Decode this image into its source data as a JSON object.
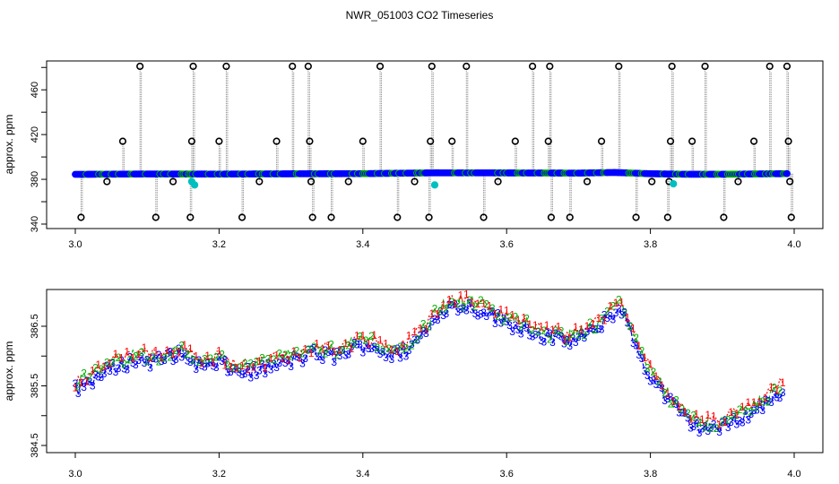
{
  "title": "NWR_051003  CO2 Timeseries",
  "colors": {
    "flag1": "#ff0000",
    "flag2": "#00b000",
    "flag3": "#0000ff",
    "outlier_ring": "#000000",
    "fill_main": "#0000ff",
    "fill_alt": "#00bfbf",
    "vertical_lines": "#888888",
    "axes": "#000000"
  },
  "chart_data": [
    {
      "type": "scatter",
      "title": "",
      "xlabel": "",
      "ylabel": "approx. ppm",
      "xlim": [
        3.0,
        4.0
      ],
      "ylim": [
        340,
        480
      ],
      "xticks": [
        "3.0",
        "3.2",
        "3.4",
        "3.6",
        "3.8",
        "4.0"
      ],
      "yticks": [
        "340",
        "380",
        "420",
        "460"
      ],
      "baseline_series": {
        "name": "",
        "x_start": 3.0,
        "x_end": 3.99,
        "step": 0.0025,
        "y_segments": [
          {
            "x": 3.0,
            "y": 384.8
          },
          {
            "x": 3.1,
            "y": 385.2
          },
          {
            "x": 3.2,
            "y": 385.1
          },
          {
            "x": 3.3,
            "y": 385.4
          },
          {
            "x": 3.4,
            "y": 385.6
          },
          {
            "x": 3.5,
            "y": 386.5
          },
          {
            "x": 3.6,
            "y": 386.4
          },
          {
            "x": 3.7,
            "y": 386.2
          },
          {
            "x": 3.75,
            "y": 386.9
          },
          {
            "x": 3.8,
            "y": 385.5
          },
          {
            "x": 3.85,
            "y": 384.9
          },
          {
            "x": 3.9,
            "y": 384.9
          },
          {
            "x": 3.99,
            "y": 385.6
          }
        ]
      },
      "outliers": [
        {
          "x": 3.008,
          "y": 346
        },
        {
          "x": 3.044,
          "y": 378
        },
        {
          "x": 3.066,
          "y": 414
        },
        {
          "x": 3.09,
          "y": 481
        },
        {
          "x": 3.112,
          "y": 346
        },
        {
          "x": 3.136,
          "y": 378
        },
        {
          "x": 3.16,
          "y": 346
        },
        {
          "x": 3.162,
          "y": 414
        },
        {
          "x": 3.164,
          "y": 481
        },
        {
          "x": 3.2,
          "y": 414
        },
        {
          "x": 3.21,
          "y": 481
        },
        {
          "x": 3.232,
          "y": 346
        },
        {
          "x": 3.256,
          "y": 378
        },
        {
          "x": 3.28,
          "y": 414
        },
        {
          "x": 3.302,
          "y": 481
        },
        {
          "x": 3.324,
          "y": 481
        },
        {
          "x": 3.326,
          "y": 414
        },
        {
          "x": 3.328,
          "y": 378
        },
        {
          "x": 3.33,
          "y": 346
        },
        {
          "x": 3.356,
          "y": 346
        },
        {
          "x": 3.38,
          "y": 378
        },
        {
          "x": 3.4,
          "y": 414
        },
        {
          "x": 3.424,
          "y": 481
        },
        {
          "x": 3.448,
          "y": 346
        },
        {
          "x": 3.472,
          "y": 378
        },
        {
          "x": 3.492,
          "y": 346
        },
        {
          "x": 3.494,
          "y": 414
        },
        {
          "x": 3.496,
          "y": 481
        },
        {
          "x": 3.524,
          "y": 414
        },
        {
          "x": 3.544,
          "y": 481
        },
        {
          "x": 3.568,
          "y": 346
        },
        {
          "x": 3.588,
          "y": 378
        },
        {
          "x": 3.612,
          "y": 414
        },
        {
          "x": 3.636,
          "y": 481
        },
        {
          "x": 3.658,
          "y": 414
        },
        {
          "x": 3.66,
          "y": 481
        },
        {
          "x": 3.662,
          "y": 346
        },
        {
          "x": 3.688,
          "y": 346
        },
        {
          "x": 3.712,
          "y": 378
        },
        {
          "x": 3.732,
          "y": 414
        },
        {
          "x": 3.756,
          "y": 481
        },
        {
          "x": 3.78,
          "y": 346
        },
        {
          "x": 3.802,
          "y": 378
        },
        {
          "x": 3.824,
          "y": 346
        },
        {
          "x": 3.826,
          "y": 378
        },
        {
          "x": 3.828,
          "y": 414
        },
        {
          "x": 3.83,
          "y": 481
        },
        {
          "x": 3.876,
          "y": 481
        },
        {
          "x": 3.858,
          "y": 414
        },
        {
          "x": 3.902,
          "y": 346
        },
        {
          "x": 3.922,
          "y": 378
        },
        {
          "x": 3.944,
          "y": 414
        },
        {
          "x": 3.966,
          "y": 481
        },
        {
          "x": 3.99,
          "y": 481
        },
        {
          "x": 3.992,
          "y": 414
        },
        {
          "x": 3.994,
          "y": 378
        },
        {
          "x": 3.996,
          "y": 346
        }
      ],
      "cyan_points": [
        {
          "x": 3.162,
          "y": 378
        },
        {
          "x": 3.166,
          "y": 375
        },
        {
          "x": 3.5,
          "y": 375
        },
        {
          "x": 3.832,
          "y": 376
        }
      ]
    },
    {
      "type": "line",
      "title": "",
      "xlabel": "",
      "ylabel": "approx. ppm",
      "xlim": [
        3.0,
        4.0
      ],
      "ylim": [
        384.5,
        387.1
      ],
      "xticks": [
        "3.0",
        "3.2",
        "3.4",
        "3.6",
        "3.8",
        "4.0"
      ],
      "yticks": [
        "384.5",
        "385.5",
        "386.5"
      ],
      "marker_labels": [
        "1",
        "2",
        "3"
      ],
      "series_profile": [
        {
          "x": 3.0,
          "y": 385.5
        },
        {
          "x": 3.03,
          "y": 385.7
        },
        {
          "x": 3.06,
          "y": 385.9
        },
        {
          "x": 3.09,
          "y": 386.0
        },
        {
          "x": 3.11,
          "y": 385.95
        },
        {
          "x": 3.14,
          "y": 386.1
        },
        {
          "x": 3.16,
          "y": 386.0
        },
        {
          "x": 3.18,
          "y": 385.85
        },
        {
          "x": 3.2,
          "y": 385.95
        },
        {
          "x": 3.22,
          "y": 385.8
        },
        {
          "x": 3.25,
          "y": 385.8
        },
        {
          "x": 3.28,
          "y": 385.9
        },
        {
          "x": 3.31,
          "y": 386.0
        },
        {
          "x": 3.33,
          "y": 386.1
        },
        {
          "x": 3.36,
          "y": 386.05
        },
        {
          "x": 3.39,
          "y": 386.2
        },
        {
          "x": 3.41,
          "y": 386.25
        },
        {
          "x": 3.44,
          "y": 386.05
        },
        {
          "x": 3.46,
          "y": 386.15
        },
        {
          "x": 3.49,
          "y": 386.5
        },
        {
          "x": 3.51,
          "y": 386.85
        },
        {
          "x": 3.54,
          "y": 386.9
        },
        {
          "x": 3.57,
          "y": 386.8
        },
        {
          "x": 3.6,
          "y": 386.6
        },
        {
          "x": 3.63,
          "y": 386.5
        },
        {
          "x": 3.66,
          "y": 386.35
        },
        {
          "x": 3.69,
          "y": 386.3
        },
        {
          "x": 3.72,
          "y": 386.45
        },
        {
          "x": 3.745,
          "y": 386.75
        },
        {
          "x": 3.76,
          "y": 386.85
        },
        {
          "x": 3.78,
          "y": 386.2
        },
        {
          "x": 3.8,
          "y": 385.7
        },
        {
          "x": 3.82,
          "y": 385.4
        },
        {
          "x": 3.84,
          "y": 385.1
        },
        {
          "x": 3.86,
          "y": 384.9
        },
        {
          "x": 3.88,
          "y": 384.85
        },
        {
          "x": 3.9,
          "y": 384.85
        },
        {
          "x": 3.92,
          "y": 385.0
        },
        {
          "x": 3.94,
          "y": 385.1
        },
        {
          "x": 3.96,
          "y": 385.25
        },
        {
          "x": 3.985,
          "y": 385.5
        }
      ]
    }
  ]
}
